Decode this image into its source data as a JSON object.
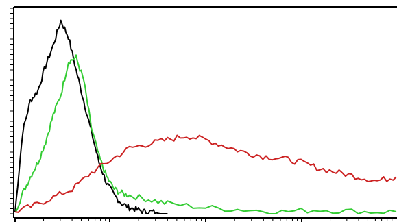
{
  "chart_data": {
    "type": "line",
    "title": "",
    "xlabel": "",
    "ylabel": "",
    "grid": false,
    "legend": "none",
    "xlim": [
      0,
      100
    ],
    "ylim": [
      0,
      100
    ],
    "x_scale": "log",
    "series": [
      {
        "color": "#000000",
        "x": [
          0,
          2,
          4,
          6,
          8,
          10,
          12,
          14,
          16,
          18,
          20,
          22,
          24,
          26,
          28,
          30,
          32,
          34,
          36,
          38,
          40
        ],
        "values": [
          1,
          40,
          55,
          60,
          72,
          82,
          94,
          86,
          70,
          55,
          40,
          25,
          15,
          9,
          5,
          3,
          2,
          1,
          1,
          0,
          0
        ]
      },
      {
        "color": "#33cc33",
        "x": [
          0,
          2,
          4,
          6,
          8,
          10,
          12,
          14,
          16,
          18,
          20,
          22,
          24,
          26,
          28,
          30,
          35,
          40,
          50,
          60,
          70,
          80,
          90,
          100
        ],
        "values": [
          1,
          10,
          18,
          25,
          35,
          48,
          58,
          74,
          76,
          65,
          42,
          28,
          18,
          12,
          10,
          9,
          7,
          5,
          3,
          2,
          1,
          2,
          1,
          1
        ]
      },
      {
        "color": "#cc2222",
        "x": [
          0,
          5,
          10,
          15,
          20,
          25,
          30,
          35,
          40,
          45,
          50,
          55,
          60,
          65,
          70,
          75,
          80,
          85,
          90,
          95,
          100
        ],
        "values": [
          1,
          4,
          8,
          12,
          20,
          26,
          32,
          34,
          36,
          38,
          36,
          33,
          30,
          28,
          27,
          25,
          22,
          20,
          18,
          16,
          18
        ]
      }
    ]
  }
}
